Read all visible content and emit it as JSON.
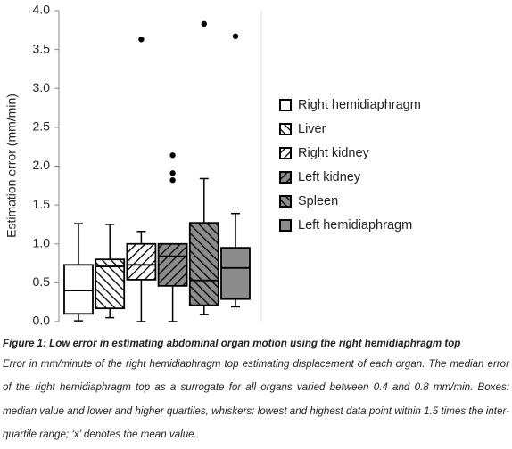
{
  "chart_data": {
    "type": "box",
    "y_label": "Estimation error (mm/min)",
    "ylim": [
      0,
      4
    ],
    "yticks": [
      {
        "value": 0,
        "label": "0.0"
      },
      0.5,
      {
        "value": 1,
        "label": "1.0"
      },
      1.5,
      {
        "value": 2,
        "label": "2.0"
      },
      2.5,
      {
        "value": 3,
        "label": "3.0"
      },
      3.5,
      {
        "value": 4,
        "label": "4.0"
      }
    ],
    "grid": false,
    "legend": "right",
    "series": [
      {
        "name": "Right hemidiaphragm",
        "color": "#ffffff",
        "hatch": "none",
        "min": 0.01,
        "q1": 0.1,
        "median": 0.4,
        "q3": 0.73,
        "max": 1.26,
        "outliers": []
      },
      {
        "name": "Liver",
        "color": "#ffffff",
        "hatch": "back",
        "min": 0.05,
        "q1": 0.17,
        "median": 0.71,
        "q3": 0.8,
        "max": 1.25,
        "outliers": []
      },
      {
        "name": "Right kidney",
        "color": "#ffffff",
        "hatch": "forward",
        "min": 0.0,
        "q1": 0.54,
        "median": 0.73,
        "q3": 1.0,
        "max": 1.16,
        "outliers": [
          3.63
        ]
      },
      {
        "name": "Left kidney",
        "color": "#8c8c8c",
        "hatch": "forward",
        "min": 0.0,
        "q1": 0.46,
        "median": 0.84,
        "q3": 1.0,
        "max": 1.0,
        "outliers": [
          2.14,
          1.91,
          1.82
        ]
      },
      {
        "name": "Spleen",
        "color": "#8c8c8c",
        "hatch": "back",
        "min": 0.09,
        "q1": 0.21,
        "median": 0.53,
        "q3": 1.27,
        "max": 1.84,
        "outliers": [
          3.83
        ]
      },
      {
        "name": "Left hemidiaphragm",
        "color": "#8c8c8c",
        "hatch": "none",
        "min": 0.19,
        "q1": 0.29,
        "median": 0.69,
        "q3": 0.95,
        "max": 1.39,
        "outliers": [
          3.67
        ]
      }
    ]
  },
  "caption": {
    "title": "Figure 1: Low error in estimating abdominal organ motion using the right hemidiaphragm top",
    "text": "Error in mm/minute of the right hemidiaphragm top estimating displacement of each organ. The median error of the right hemidiaphragm top as a surrogate for all organs varied between 0.4 and 0.8 mm/min. Boxes: median value and lower and higher quartiles, whiskers: lowest and highest data point within 1.5 times the inter-quartile range; ‘x’ denotes the mean value."
  }
}
